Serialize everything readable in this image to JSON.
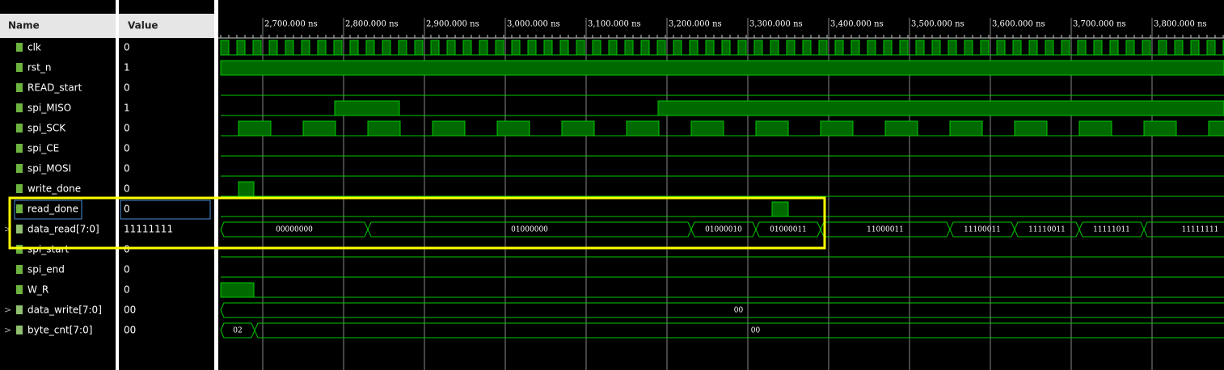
{
  "header": {
    "name": "Name",
    "value": "Value"
  },
  "timeline": {
    "ticks": [
      "2,700.000 ns",
      "2,800.000 ns",
      "2,900.000 ns",
      "3,000.000 ns",
      "3,100.000 ns",
      "3,200.000 ns",
      "3,300.000 ns",
      "3,400.000 ns",
      "3,500.000 ns",
      "3,600.000 ns",
      "3,700.000 ns",
      "3,800.000 ns"
    ]
  },
  "signals": [
    {
      "name": "clk",
      "value": "0"
    },
    {
      "name": "rst_n",
      "value": "1"
    },
    {
      "name": "READ_start",
      "value": "0"
    },
    {
      "name": "spi_MISO",
      "value": "1"
    },
    {
      "name": "spi_SCK",
      "value": "0"
    },
    {
      "name": "spi_CE",
      "value": "0"
    },
    {
      "name": "spi_MOSI",
      "value": "0"
    },
    {
      "name": "write_done",
      "value": "0"
    },
    {
      "name": "read_done",
      "value": "0"
    },
    {
      "name": "data_read[7:0]",
      "value": "11111111",
      "segments": [
        "00000000",
        "01000000",
        "01000010",
        "01000011",
        "11000011",
        "11100011",
        "11110011",
        "11111011",
        "11111111"
      ]
    },
    {
      "name": "spi_start",
      "value": "0"
    },
    {
      "name": "spi_end",
      "value": "0"
    },
    {
      "name": "W_R",
      "value": "0"
    },
    {
      "name": "data_write[7:0]",
      "value": "00",
      "segments": [
        "00"
      ]
    },
    {
      "name": "byte_cnt[7:0]",
      "value": "00",
      "segments": [
        "02",
        "00"
      ]
    }
  ]
}
